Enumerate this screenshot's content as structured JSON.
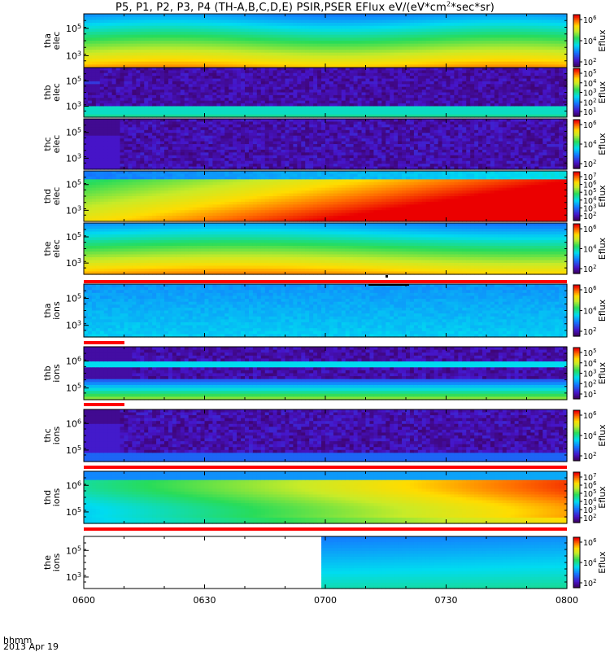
{
  "title": {
    "main": "P5, P1, P2, P3, P4 (TH-A,B,C,D,E) PSIR,PSER EFlux eV/(eV*cm",
    "sup": "2",
    "tail": "*sec*sr)"
  },
  "footer": {
    "time_label": "hhmm",
    "date_label": "2013 Apr 19"
  },
  "colorbar_label": "Eflux",
  "chart_data": {
    "type": "heatmap",
    "x_ticks": [
      "0600",
      "0630",
      "0700",
      "0730",
      "0800"
    ],
    "x_range": [
      "0600",
      "0800"
    ],
    "panels": [
      {
        "label": [
          "tha",
          "elec"
        ],
        "y_ticks": [
          "10^5",
          "10^3"
        ],
        "cbar": [
          "10^6",
          "10^4",
          "10^2"
        ],
        "pattern": "tha_elec",
        "strip": null
      },
      {
        "label": [
          "thb",
          "elec"
        ],
        "y_ticks": [
          "10^5",
          "10^3"
        ],
        "cbar": [
          "10^5",
          "10^4",
          "10^3",
          "10^2",
          "10^1"
        ],
        "pattern": "thb_elec",
        "strip": null
      },
      {
        "label": [
          "thc",
          "elec"
        ],
        "y_ticks": [
          "10^5",
          "10^3"
        ],
        "cbar": [
          "10^6",
          "10^4",
          "10^2"
        ],
        "pattern": "thc_elec",
        "strip": null
      },
      {
        "label": [
          "thd",
          "elec"
        ],
        "y_ticks": [
          "10^5",
          "10^3"
        ],
        "cbar": [
          "10^7",
          "10^6",
          "10^5",
          "10^4",
          "10^3",
          "10^2"
        ],
        "pattern": "thd_elec",
        "strip": null
      },
      {
        "label": [
          "the",
          "elec"
        ],
        "y_ticks": [
          "10^5",
          "10^3"
        ],
        "cbar": [
          "10^6",
          "10^4",
          "10^2"
        ],
        "pattern": "the_elec",
        "strip": "full"
      },
      {
        "label": [
          "tha",
          "ions"
        ],
        "y_ticks": [
          "10^5",
          "10^3"
        ],
        "cbar": [
          "10^6",
          "10^4",
          "10^2"
        ],
        "pattern": "tha_ions",
        "strip": "short"
      },
      {
        "label": [
          "thb",
          "ions"
        ],
        "y_ticks": [
          "10^6",
          "10^5"
        ],
        "cbar": [
          "10^5",
          "10^4",
          "10^3",
          "10^2",
          "10^1"
        ],
        "pattern": "thb_ions",
        "strip": "short"
      },
      {
        "label": [
          "thc",
          "ions"
        ],
        "y_ticks": [
          "10^6",
          "10^5"
        ],
        "cbar": [
          "10^6",
          "10^4",
          "10^2"
        ],
        "pattern": "thc_ions",
        "strip": "full"
      },
      {
        "label": [
          "thd",
          "ions"
        ],
        "y_ticks": [
          "10^6",
          "10^5"
        ],
        "cbar": [
          "10^7",
          "10^6",
          "10^5",
          "10^4",
          "10^3",
          "10^2"
        ],
        "pattern": "thd_ions",
        "strip": "full"
      },
      {
        "label": [
          "the",
          "ions"
        ],
        "y_ticks": [
          "10^5",
          "10^3"
        ],
        "cbar": [
          "10^6",
          "10^4",
          "10^2"
        ],
        "pattern": "the_ions",
        "strip": null
      }
    ]
  }
}
